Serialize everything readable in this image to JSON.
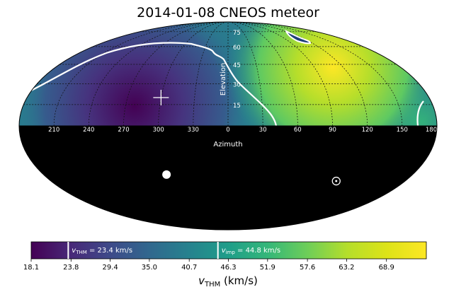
{
  "chart_data": {
    "type": "heatmap",
    "projection": "mollweide",
    "title": "2014-01-08 CNEOS meteor",
    "xlabel": "Azimuth",
    "ylabel": "Elevation",
    "azimuth_ticks": [
      "210",
      "240",
      "270",
      "300",
      "330",
      "0",
      "30",
      "60",
      "90",
      "120",
      "150",
      "180"
    ],
    "elevation_ticks": [
      "15",
      "30",
      "45",
      "60",
      "75"
    ],
    "below_horizon": "black",
    "colormap": "viridis",
    "colorbar": {
      "label_main": "v",
      "label_sub": "THM",
      "label_unit": " (km/s)",
      "range": [
        18.1,
        74.6
      ],
      "ticks": [
        "18.1",
        "23.8",
        "29.4",
        "35.0",
        "40.7",
        "46.3",
        "51.9",
        "57.6",
        "63.2",
        "68.9"
      ],
      "markers": [
        {
          "value": 23.4,
          "sym": "v",
          "sub": "THM",
          "text": " = 23.4 km/s"
        },
        {
          "value": 44.8,
          "sym": "v",
          "sub": "imp",
          "text": " = 44.8 km/s"
        }
      ]
    },
    "field_samples": [
      {
        "az": 300,
        "el": 15,
        "v": 20
      },
      {
        "az": 270,
        "el": 10,
        "v": 19
      },
      {
        "az": 330,
        "el": 45,
        "v": 26
      },
      {
        "az": 240,
        "el": 30,
        "v": 28
      },
      {
        "az": 0,
        "el": 60,
        "v": 40
      },
      {
        "az": 30,
        "el": 20,
        "v": 52
      },
      {
        "az": 90,
        "el": 35,
        "v": 72
      },
      {
        "az": 120,
        "el": 15,
        "v": 62
      },
      {
        "az": 170,
        "el": 10,
        "v": 46
      },
      {
        "az": 200,
        "el": 10,
        "v": 36
      }
    ],
    "markers": [
      {
        "label": "radiant-cross",
        "symbol": "+",
        "az": 300,
        "el": 20
      },
      {
        "label": "white-dot",
        "symbol": "●",
        "az": 300,
        "el": -35
      },
      {
        "label": "sun-symbol",
        "symbol": "⊙",
        "az": 110,
        "el": -40
      }
    ]
  }
}
